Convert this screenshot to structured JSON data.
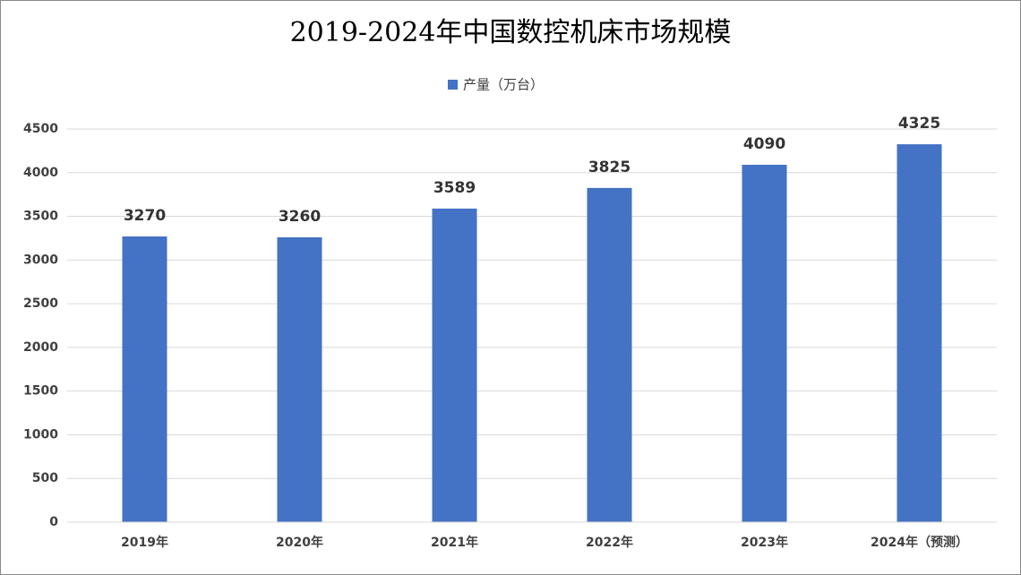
{
  "chart_data": {
    "type": "bar",
    "title": "2019-2024年中国数控机床市场规模",
    "categories": [
      "2019年",
      "2020年",
      "2021年",
      "2022年",
      "2023年",
      "2024年（预测）"
    ],
    "series": [
      {
        "name": "产量（万台）",
        "color": "#4472c4",
        "values": [
          3270,
          3260,
          3589,
          3825,
          4090,
          4325
        ]
      }
    ],
    "ylim": [
      0,
      4500
    ],
    "yticks": [
      0,
      500,
      1000,
      1500,
      2000,
      2500,
      3000,
      3500,
      4000,
      4500
    ],
    "grid": true,
    "legend": "top"
  }
}
